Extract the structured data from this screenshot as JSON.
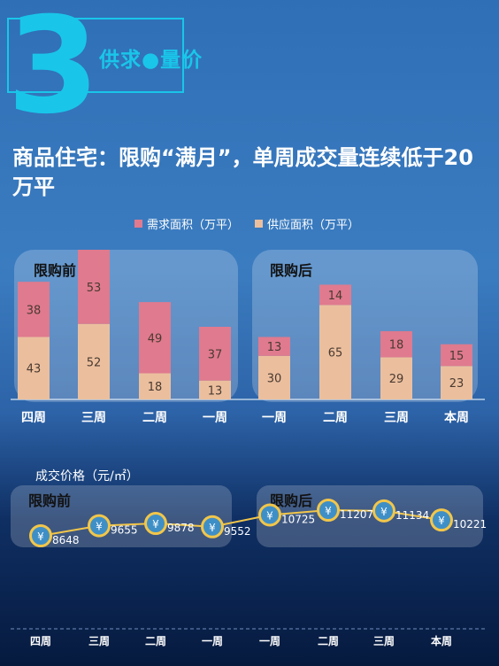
{
  "section": {
    "number": "3",
    "title": "供求●量价"
  },
  "headline": "商品住宅：限购“满月”，单周成交量连续低于20万平",
  "legend": {
    "demand": "需求面积（万平）",
    "supply": "供应面积（万平）"
  },
  "panels": {
    "before": "限购前",
    "after": "限购后"
  },
  "price_title": "成交价格（元/㎡）",
  "yen_symbol": "¥",
  "colors": {
    "demand": "#e07a8e",
    "supply": "#ebbf9e",
    "accent": "#19c6ea",
    "marker": "#f2c64a",
    "marker_fill": "#3f8fc7"
  },
  "chart_data": [
    {
      "type": "bar",
      "stacked": true,
      "categories": [
        "四周",
        "三周",
        "二周",
        "一周",
        "一周",
        "二周",
        "三周",
        "本周"
      ],
      "series": [
        {
          "name": "供应面积（万平）",
          "values": [
            43,
            52,
            18,
            13,
            30,
            65,
            29,
            23
          ]
        },
        {
          "name": "需求面积（万平）",
          "values": [
            38,
            53,
            49,
            37,
            13,
            14,
            18,
            15
          ]
        }
      ],
      "legend": "top"
    },
    {
      "type": "line",
      "title": "成交价格（元/㎡）",
      "categories": [
        "四周",
        "三周",
        "二周",
        "一周",
        "一周",
        "二周",
        "三周",
        "本周"
      ],
      "values": [
        8648,
        9655,
        9878,
        9552,
        10725,
        11207,
        11134,
        10221
      ]
    }
  ]
}
